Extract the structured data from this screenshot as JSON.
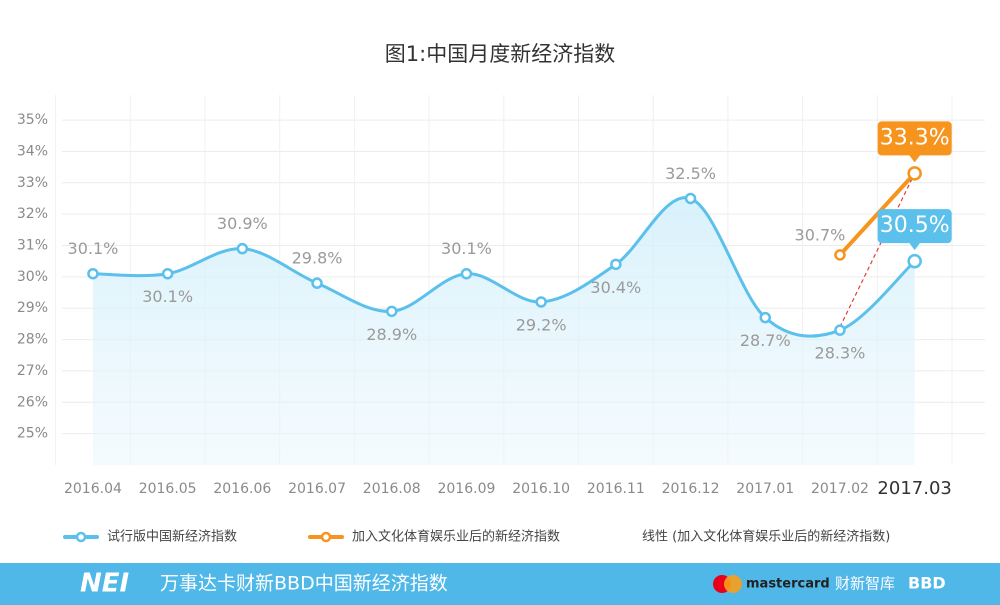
{
  "chart_data": {
    "type": "line",
    "title": "图1:中国月度新经济指数",
    "categories": [
      "2016.04",
      "2016.05",
      "2016.06",
      "2016.07",
      "2016.08",
      "2016.09",
      "2016.10",
      "2016.11",
      "2016.12",
      "2017.01",
      "2017.02",
      "2017.03"
    ],
    "series": [
      {
        "name": "试行版中国新经济指数",
        "color": "#5bc0eb",
        "values": [
          30.1,
          30.1,
          30.9,
          29.8,
          28.9,
          30.1,
          29.2,
          30.4,
          32.5,
          28.7,
          28.3,
          30.5
        ],
        "value_labels": [
          "30.1%",
          "30.1%",
          "30.9%",
          "29.8%",
          "28.9%",
          "30.1%",
          "29.2%",
          "30.4%",
          "32.5%",
          "28.7%",
          "28.3%",
          "30.5%"
        ]
      },
      {
        "name": "加入文化体育娱乐业后的新经济指数",
        "color": "#f7941d",
        "values": [
          null,
          null,
          null,
          null,
          null,
          null,
          null,
          null,
          null,
          null,
          30.7,
          33.3
        ],
        "value_labels": [
          null,
          null,
          null,
          null,
          null,
          null,
          null,
          null,
          null,
          null,
          "30.7%",
          "33.3%"
        ]
      },
      {
        "name": "线性 (加入文化体育娱乐业后的新经济指数)",
        "color": "#e0403a",
        "dashed": true,
        "values": [
          null,
          null,
          null,
          null,
          null,
          null,
          null,
          null,
          null,
          null,
          28.4,
          33.3
        ]
      }
    ],
    "ylim": [
      24,
      35.8
    ],
    "yticks": [
      {
        "value": 25,
        "label": "25%"
      },
      {
        "value": 26,
        "label": "26%"
      },
      {
        "value": 27,
        "label": "27%"
      },
      {
        "value": 28,
        "label": "28%"
      },
      {
        "value": 29,
        "label": "29%"
      },
      {
        "value": 30,
        "label": "30%"
      },
      {
        "value": 31,
        "label": "31%"
      },
      {
        "value": 32,
        "label": "32%"
      },
      {
        "value": 33,
        "label": "33%"
      },
      {
        "value": 34,
        "label": "34%"
      },
      {
        "value": 35,
        "label": "35%"
      }
    ],
    "grid": true
  },
  "footer": {
    "logo": "NEI",
    "name": "万事达卡财新BBD中国新经济指数",
    "partners": [
      "mastercard",
      "财新智库",
      "BBD"
    ]
  }
}
